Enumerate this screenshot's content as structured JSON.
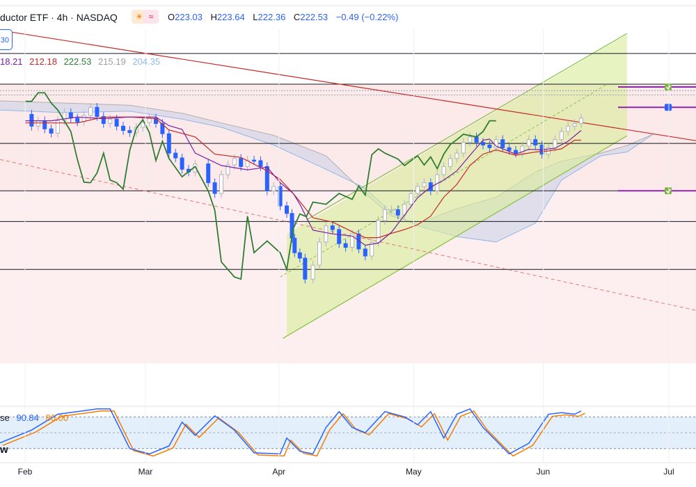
{
  "header": {
    "title": "ductor ETF · 4h · NASDAQ",
    "ohlc": [
      {
        "label": "O",
        "value": "223.03"
      },
      {
        "label": "H",
        "value": "223.64"
      },
      {
        "label": "L",
        "value": "222.36"
      },
      {
        "label": "C",
        "value": "222.53"
      }
    ],
    "change": "−0.49 (−0.22%)"
  },
  "badge_text": "30",
  "indicator_values": [
    {
      "text": "18.21",
      "color": "#7b1fa2"
    },
    {
      "text": "212.18",
      "color": "#c62828"
    },
    {
      "text": "222.53",
      "color": "#2e7d32"
    },
    {
      "text": "215.19",
      "color": "#9e9e9e"
    },
    {
      "text": "204.35",
      "color": "#90b8e8"
    }
  ],
  "stoch": {
    "label": "se",
    "k": "90.84",
    "d": "86.00",
    "extra": "w"
  },
  "colors": {
    "up": "#b0b3bd",
    "down": "#2962ff",
    "tenkan": "#7b1fa2",
    "kijun": "#c62828",
    "chikou": "#2e7d32",
    "cloud_bear": "#90b8e8",
    "cloud_bull": "#b0b0b0",
    "channel": "#8bc34a"
  },
  "chart_data": {
    "type": "candlestick",
    "symbol": "Semiconductor ETF",
    "timeframe": "4h",
    "exchange": "NASDAQ",
    "x_ticks": [
      "Feb",
      "Mar",
      "Apr",
      "May",
      "Jun",
      "Jul"
    ],
    "ylim": [
      178,
      240
    ],
    "horizontal_levels": [
      235.5,
      229.8,
      218.8,
      210.0,
      204.3,
      195.4
    ],
    "close_path": [
      [
        0.0,
        224.2
      ],
      [
        0.05,
        222.0
      ],
      [
        0.1,
        223.0
      ],
      [
        0.15,
        221.5
      ],
      [
        0.2,
        220.7
      ],
      [
        0.25,
        223.0
      ],
      [
        0.3,
        224.5
      ],
      [
        0.35,
        223.5
      ],
      [
        0.4,
        222.8
      ],
      [
        0.45,
        224.0
      ],
      [
        0.5,
        225.5
      ],
      [
        0.55,
        223.8
      ],
      [
        0.6,
        222.5
      ],
      [
        0.65,
        223.3
      ],
      [
        0.7,
        222.0
      ],
      [
        0.75,
        221.2
      ],
      [
        0.8,
        220.8
      ],
      [
        0.85,
        221.8
      ],
      [
        0.9,
        222.7
      ],
      [
        0.95,
        223.5
      ],
      [
        1.0,
        222.5
      ],
      [
        1.05,
        220.6
      ],
      [
        1.1,
        217.0
      ],
      [
        1.15,
        216.1
      ],
      [
        1.2,
        214.0
      ],
      [
        1.25,
        213.5
      ],
      [
        1.3,
        215.0
      ],
      [
        1.4,
        211.5
      ],
      [
        1.45,
        209.5
      ],
      [
        1.5,
        213.0
      ],
      [
        1.55,
        214.8
      ],
      [
        1.6,
        216.0
      ],
      [
        1.65,
        214.5
      ],
      [
        1.7,
        215.7
      ],
      [
        1.75,
        215.6
      ],
      [
        1.8,
        214.5
      ],
      [
        1.85,
        210.0
      ],
      [
        1.9,
        210.8
      ],
      [
        1.95,
        207.2
      ],
      [
        2.0,
        205.8
      ],
      [
        2.04,
        201.2
      ],
      [
        2.06,
        198.5
      ],
      [
        2.1,
        197.5
      ],
      [
        2.14,
        193.6
      ],
      [
        2.2,
        196.2
      ],
      [
        2.25,
        200.5
      ],
      [
        2.3,
        203.5
      ],
      [
        2.35,
        202.8
      ],
      [
        2.4,
        200.2
      ],
      [
        2.45,
        199.5
      ],
      [
        2.5,
        202.0
      ],
      [
        2.55,
        199.2
      ],
      [
        2.6,
        197.9
      ],
      [
        2.65,
        200.4
      ],
      [
        2.7,
        204.5
      ],
      [
        2.75,
        206.5
      ],
      [
        2.8,
        206.5
      ],
      [
        2.85,
        205.5
      ],
      [
        2.9,
        207.5
      ],
      [
        2.95,
        209.5
      ],
      [
        3.0,
        210.8
      ],
      [
        3.05,
        211.5
      ],
      [
        3.1,
        210.0
      ],
      [
        3.15,
        213.0
      ],
      [
        3.2,
        214.5
      ],
      [
        3.25,
        216.0
      ],
      [
        3.3,
        217.0
      ],
      [
        3.35,
        219.0
      ],
      [
        3.4,
        220.0
      ],
      [
        3.45,
        219.0
      ],
      [
        3.5,
        218.5
      ],
      [
        3.55,
        218.0
      ],
      [
        3.6,
        219.5
      ],
      [
        3.65,
        218.0
      ],
      [
        3.7,
        217.5
      ],
      [
        3.75,
        217.0
      ],
      [
        3.8,
        218.3
      ],
      [
        3.85,
        219.5
      ],
      [
        3.9,
        218.5
      ],
      [
        3.95,
        216.8
      ],
      [
        4.0,
        218.0
      ],
      [
        4.05,
        219.5
      ],
      [
        4.1,
        221.0
      ],
      [
        4.15,
        222.0
      ],
      [
        4.2,
        222.5
      ],
      [
        4.25,
        223.5
      ]
    ],
    "tenkan_path": [
      [
        0.0,
        223.0
      ],
      [
        0.2,
        223.0
      ],
      [
        0.4,
        223.7
      ],
      [
        0.6,
        223.4
      ],
      [
        0.8,
        223.7
      ],
      [
        1.0,
        223.7
      ],
      [
        1.1,
        222.1
      ],
      [
        1.2,
        221.4
      ],
      [
        1.3,
        217.0
      ],
      [
        1.5,
        214.7
      ],
      [
        1.7,
        213.9
      ],
      [
        1.85,
        214.4
      ],
      [
        1.95,
        211.5
      ],
      [
        2.05,
        209.5
      ],
      [
        2.1,
        207.5
      ],
      [
        2.2,
        202.7
      ],
      [
        2.35,
        202.0
      ],
      [
        2.5,
        201.6
      ],
      [
        2.6,
        199.9
      ],
      [
        2.7,
        200.3
      ],
      [
        2.8,
        202.3
      ],
      [
        2.9,
        205.5
      ],
      [
        3.0,
        208.7
      ],
      [
        3.1,
        210.7
      ],
      [
        3.2,
        212.0
      ],
      [
        3.3,
        213.7
      ],
      [
        3.4,
        216.6
      ],
      [
        3.5,
        219.4
      ],
      [
        3.55,
        219.6
      ],
      [
        3.6,
        218.3
      ],
      [
        3.75,
        216.8
      ],
      [
        3.85,
        217.7
      ],
      [
        3.95,
        217.6
      ],
      [
        4.05,
        217.9
      ],
      [
        4.15,
        219.2
      ],
      [
        4.25,
        221.2
      ]
    ],
    "kijun_path": [
      [
        0.0,
        222.6
      ],
      [
        0.4,
        222.6
      ],
      [
        0.6,
        223.7
      ],
      [
        0.8,
        223.7
      ],
      [
        1.0,
        223.4
      ],
      [
        1.1,
        221.3
      ],
      [
        1.3,
        220.0
      ],
      [
        1.45,
        216.8
      ],
      [
        1.65,
        216.2
      ],
      [
        1.85,
        213.7
      ],
      [
        1.95,
        212.1
      ],
      [
        2.05,
        209.5
      ],
      [
        2.2,
        205.0
      ],
      [
        2.35,
        204.2
      ],
      [
        2.5,
        202.4
      ],
      [
        2.6,
        201.3
      ],
      [
        2.7,
        201.3
      ],
      [
        2.8,
        202.1
      ],
      [
        2.9,
        202.8
      ],
      [
        3.0,
        203.7
      ],
      [
        3.1,
        205.3
      ],
      [
        3.2,
        208.8
      ],
      [
        3.3,
        211.2
      ],
      [
        3.4,
        214.7
      ],
      [
        3.5,
        216.8
      ],
      [
        3.6,
        217.6
      ],
      [
        3.75,
        216.6
      ],
      [
        3.9,
        217.2
      ],
      [
        4.0,
        217.4
      ],
      [
        4.1,
        217.8
      ],
      [
        4.2,
        219.4
      ],
      [
        4.25,
        219.4
      ]
    ],
    "chikou_path": [
      [
        0.0,
        226.6
      ],
      [
        0.05,
        226.6
      ],
      [
        0.1,
        228.2
      ],
      [
        0.15,
        228.2
      ],
      [
        0.2,
        226.3
      ],
      [
        0.25,
        225.0
      ],
      [
        0.3,
        223.0
      ],
      [
        0.35,
        221.0
      ],
      [
        0.4,
        215.8
      ],
      [
        0.45,
        211.6
      ],
      [
        0.5,
        211.5
      ],
      [
        0.55,
        213.3
      ],
      [
        0.6,
        217.0
      ],
      [
        0.65,
        212.0
      ],
      [
        0.7,
        211.5
      ],
      [
        0.75,
        210.3
      ],
      [
        0.8,
        217.5
      ],
      [
        0.85,
        221.6
      ],
      [
        0.9,
        223.2
      ],
      [
        0.95,
        220.8
      ],
      [
        1.0,
        215.6
      ],
      [
        1.05,
        219.2
      ],
      [
        1.1,
        216.0
      ],
      [
        1.2,
        212.6
      ],
      [
        1.3,
        214.5
      ],
      [
        1.4,
        210.0
      ],
      [
        1.45,
        206.4
      ],
      [
        1.5,
        196.8
      ],
      [
        1.6,
        194.0
      ],
      [
        1.65,
        193.6
      ],
      [
        1.7,
        205.3
      ],
      [
        1.75,
        198.5
      ],
      [
        1.85,
        200.7
      ],
      [
        1.95,
        198.5
      ],
      [
        2.0,
        195.4
      ],
      [
        2.05,
        203.0
      ],
      [
        2.1,
        205.7
      ],
      [
        2.15,
        205.2
      ],
      [
        2.2,
        207.9
      ],
      [
        2.3,
        207.5
      ],
      [
        2.4,
        209.5
      ],
      [
        2.5,
        208.4
      ],
      [
        2.55,
        210.9
      ],
      [
        2.6,
        209.2
      ],
      [
        2.65,
        216.7
      ],
      [
        2.7,
        217.8
      ],
      [
        2.75,
        217.0
      ],
      [
        2.85,
        215.9
      ],
      [
        2.9,
        214.7
      ],
      [
        3.0,
        216.5
      ],
      [
        3.05,
        214.8
      ],
      [
        3.1,
        216.3
      ],
      [
        3.15,
        214.1
      ],
      [
        3.2,
        216.8
      ],
      [
        3.25,
        218.6
      ],
      [
        3.3,
        219.5
      ],
      [
        3.35,
        220.5
      ],
      [
        3.45,
        220.0
      ],
      [
        3.5,
        221.0
      ],
      [
        3.55,
        223.0
      ],
      [
        3.6,
        223.0
      ]
    ],
    "stochastic": {
      "k": 90.84,
      "d": 86.0,
      "upper": 80,
      "lower": 20,
      "ylim": [
        0,
        100
      ]
    }
  }
}
